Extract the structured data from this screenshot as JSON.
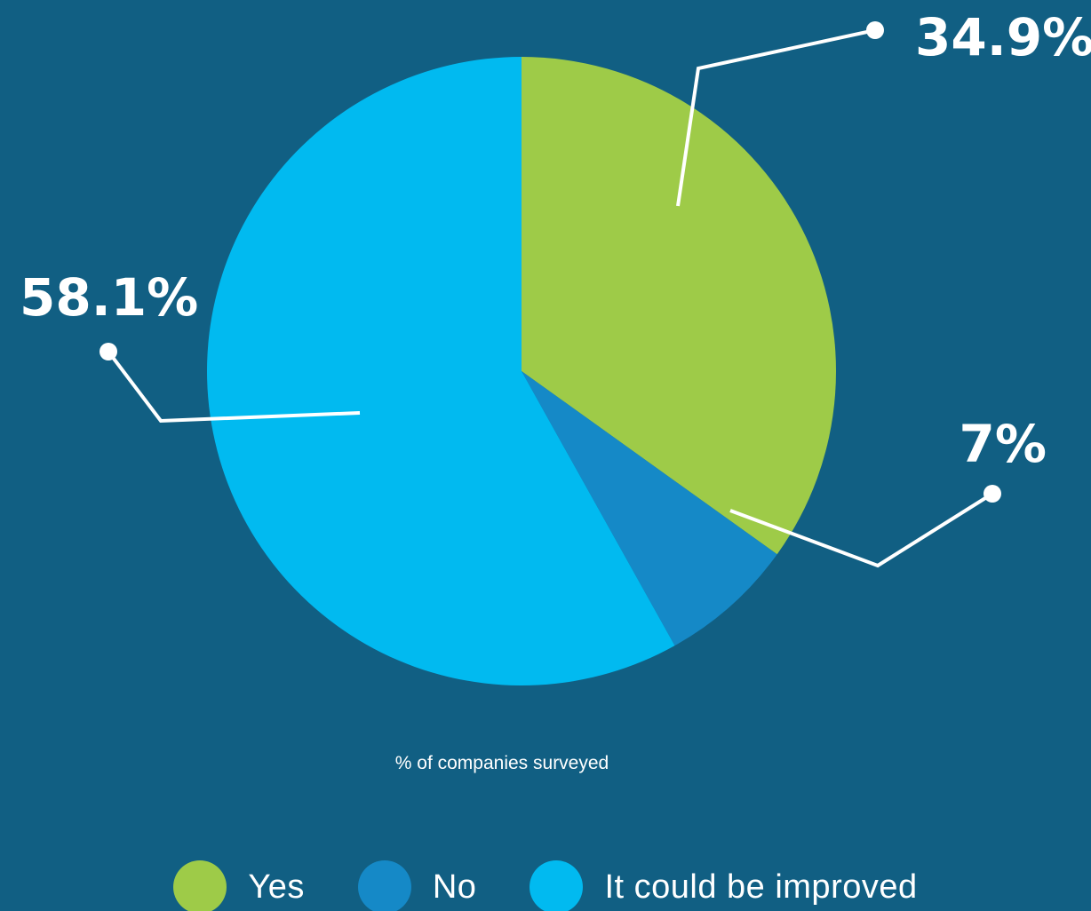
{
  "chart_data": {
    "type": "pie",
    "caption": "% of companies surveyed",
    "slices": [
      {
        "name": "Yes",
        "value": 34.9,
        "label": "34.9%",
        "color": "#9ecb48"
      },
      {
        "name": "No",
        "value": 7,
        "label": "7%",
        "color": "#1589c7"
      },
      {
        "name": "It could be improved",
        "value": 58.1,
        "label": "58.1%",
        "color": "#01baf0"
      }
    ],
    "legend_position": "bottom"
  },
  "colors": {
    "background": "#115f83",
    "leader_lines": "#ffffff"
  }
}
